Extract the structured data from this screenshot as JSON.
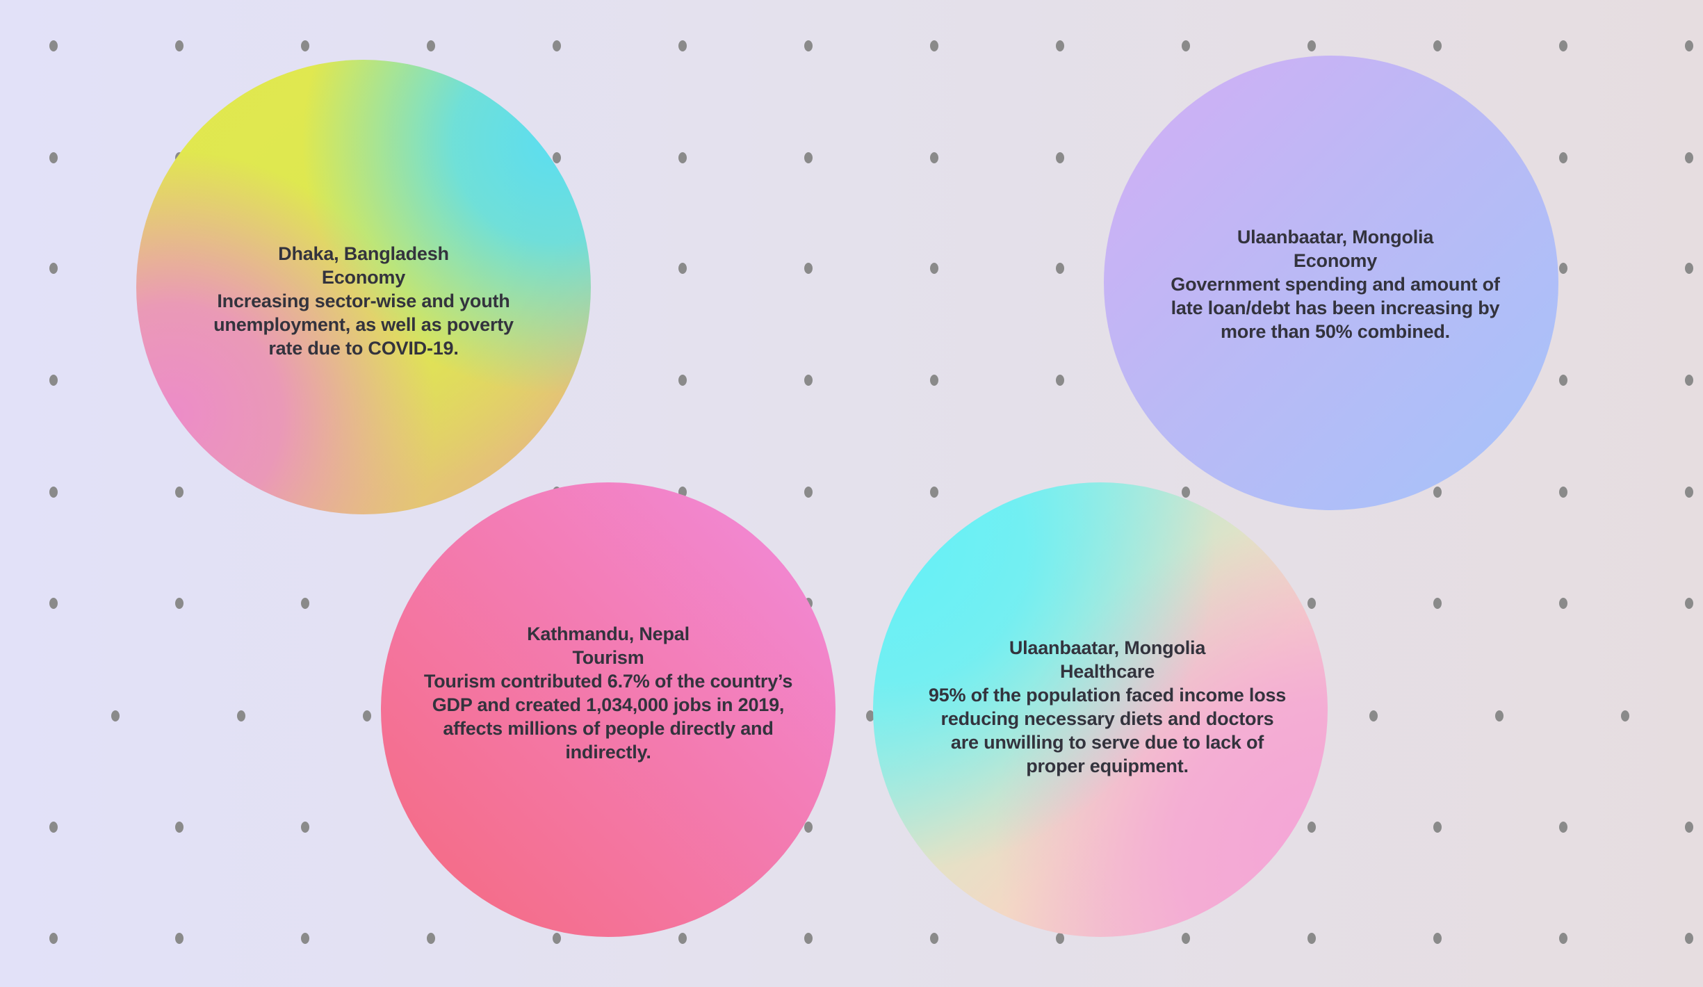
{
  "bubbles": [
    {
      "city": "Dhaka, Bangladesh",
      "category": "Economy",
      "description": "Increasing sector-wise and youth unemployment, as well as poverty rate due to COVID-19."
    },
    {
      "city": "Ulaanbaatar, Mongolia",
      "category": "Economy",
      "description": "Government spending and amount of late loan/debt has been increasing by more than 50% combined."
    },
    {
      "city": "Kathmandu, Nepal",
      "category": "Tourism",
      "description": "Tourism contributed 6.7% of the country’s GDP and created 1,034,000 jobs in 2019, affects millions of people directly and indirectly."
    },
    {
      "city": "Ulaanbaatar, Mongolia",
      "category": "Healthcare",
      "description": "95% of the population faced income loss reducing necessary diets and doctors are unwilling to serve due to lack of proper equipment."
    }
  ],
  "colors": {
    "dot": "#8a8a8a",
    "text": "#33333d"
  }
}
